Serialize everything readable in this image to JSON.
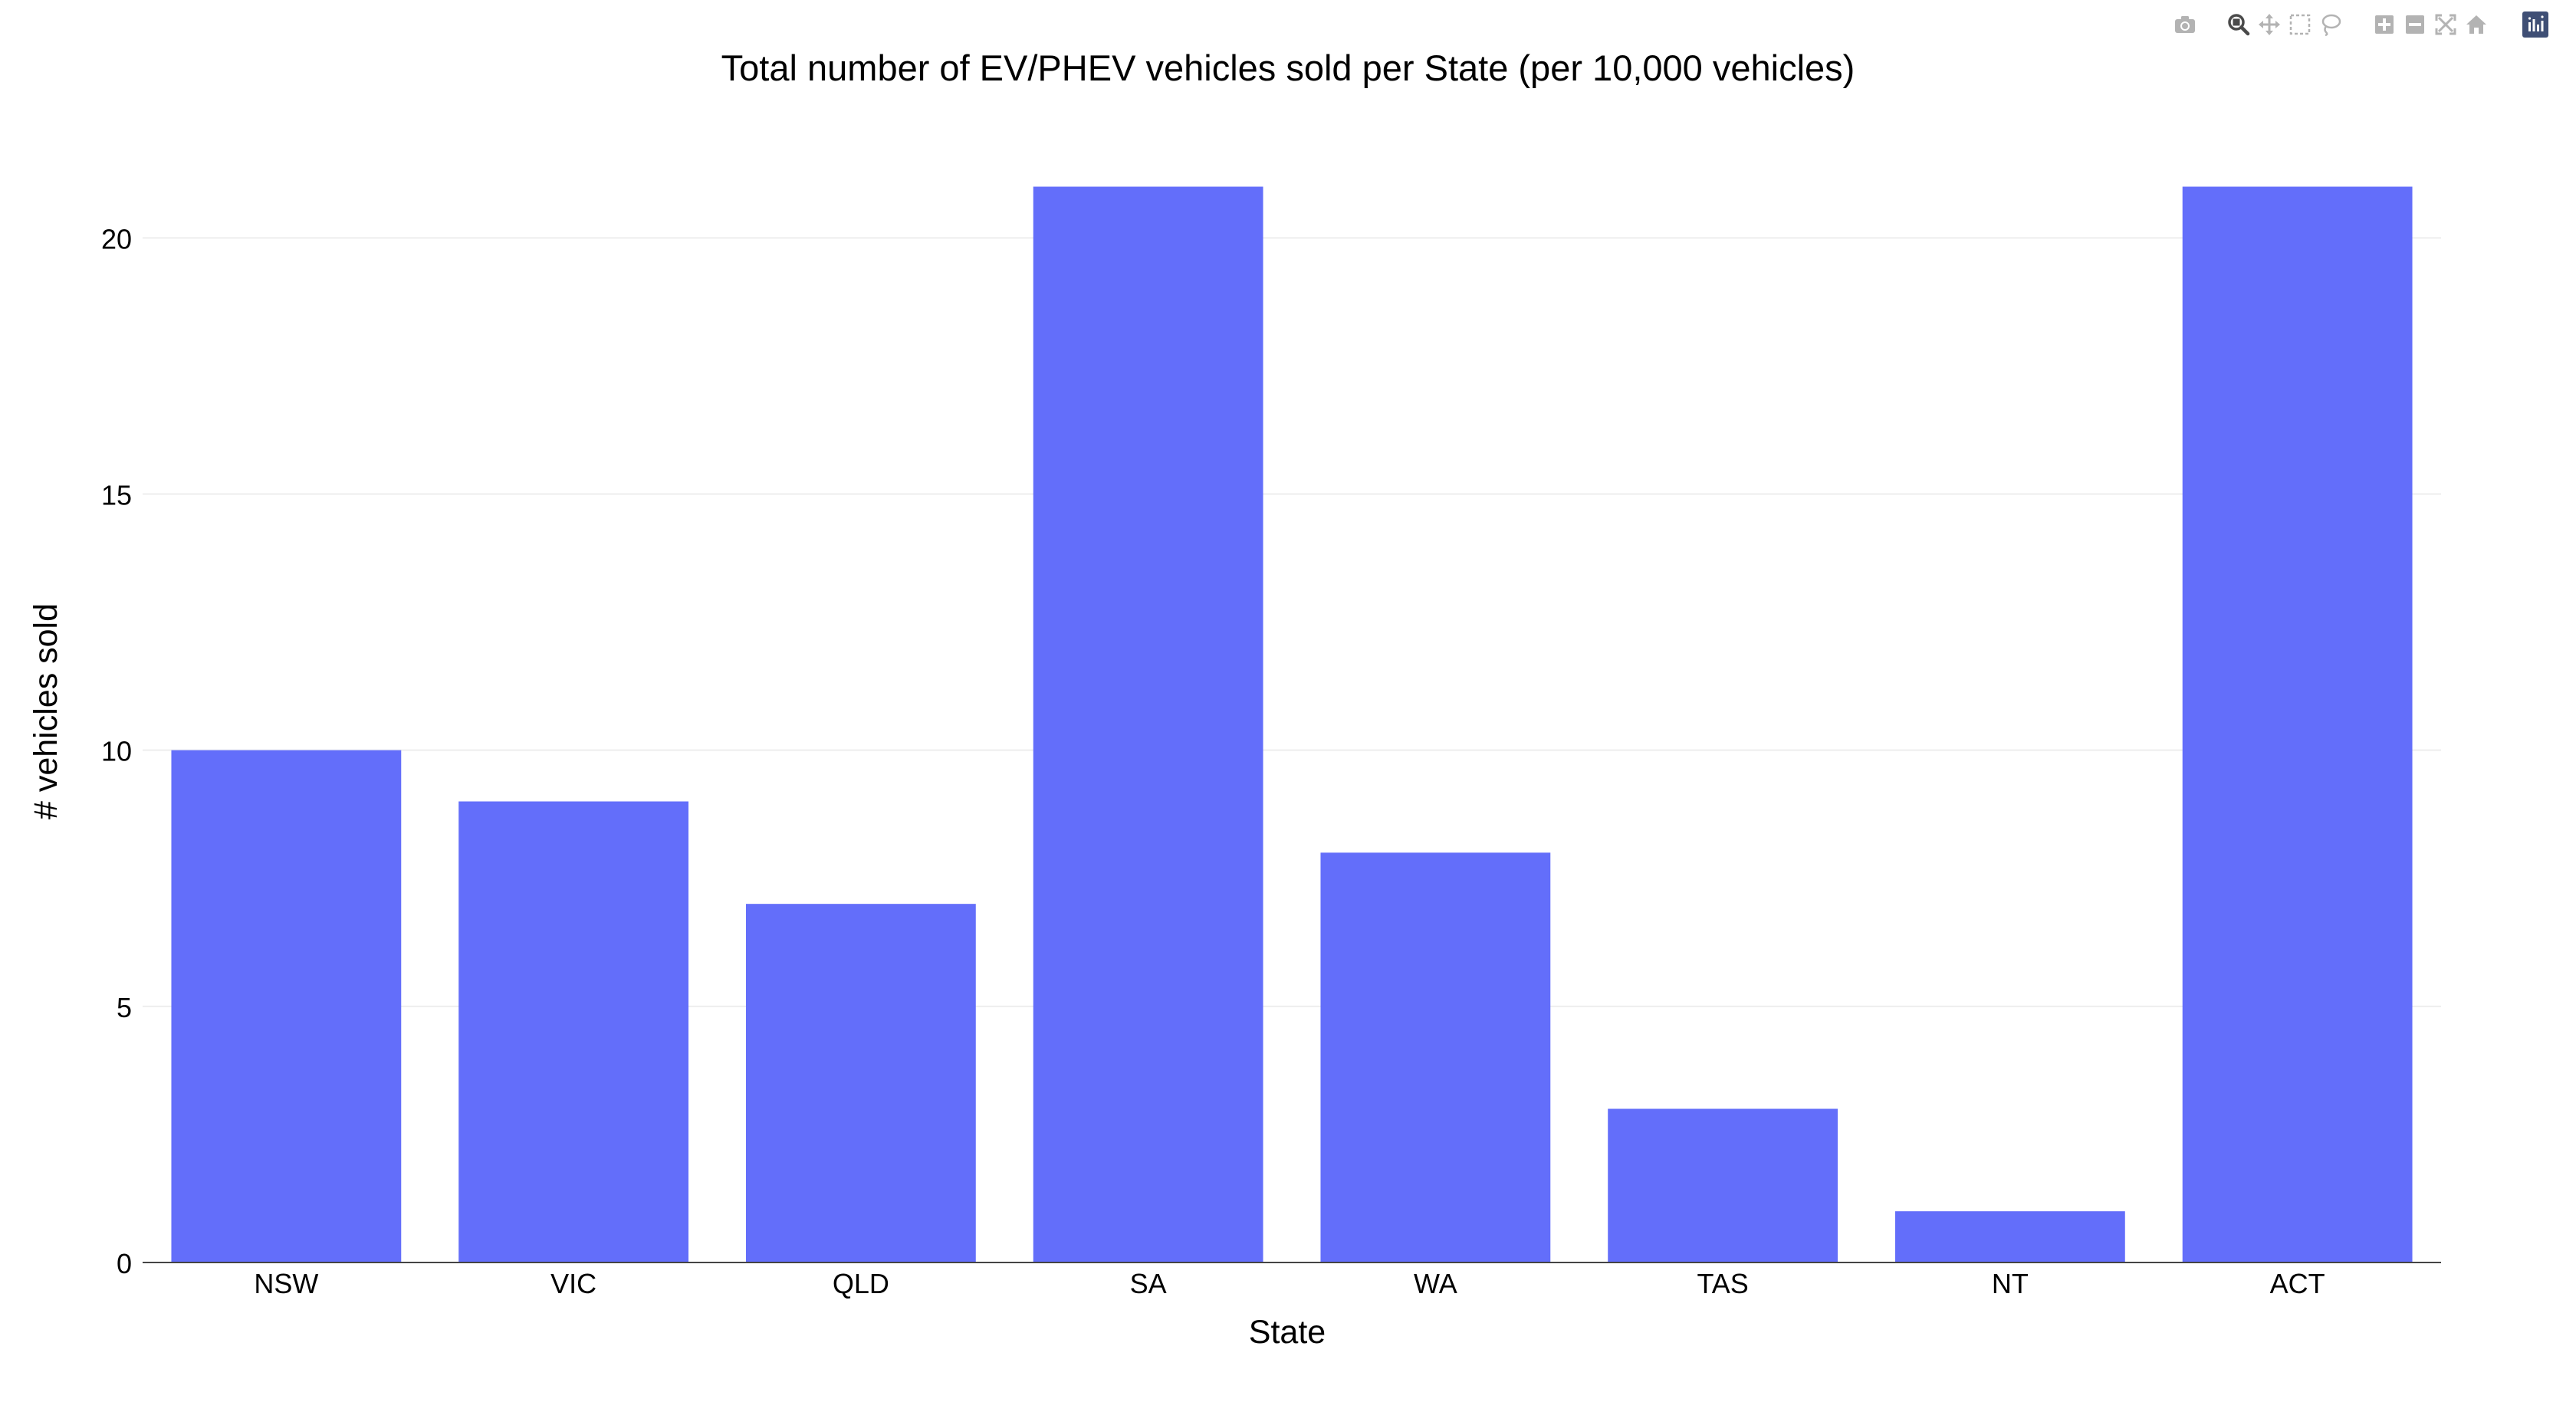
{
  "modebar": {
    "groups": [
      [
        "camera-icon"
      ],
      [
        "zoom-icon",
        "pan-icon",
        "box-select-icon",
        "lasso-select-icon"
      ],
      [
        "zoom-in-icon",
        "zoom-out-icon",
        "autoscale-icon",
        "reset-axes-icon"
      ],
      [
        "plotly-logo-icon"
      ]
    ],
    "icon_color": "#b3b3b3",
    "active_color": "#4a4a4a",
    "logo_color": "#3f4f75"
  },
  "chart_data": {
    "type": "bar",
    "title": "Total number of EV/PHEV vehicles sold per State (per 10,000 vehicles)",
    "xlabel": "State",
    "ylabel": "# vehicles sold",
    "categories": [
      "NSW",
      "VIC",
      "QLD",
      "SA",
      "WA",
      "TAS",
      "NT",
      "ACT"
    ],
    "values": [
      10,
      9,
      7,
      21,
      8,
      3,
      1,
      21
    ],
    "ylim": [
      0,
      22.1
    ],
    "yticks": [
      0,
      5,
      10,
      15,
      20
    ],
    "grid": true,
    "legend": "none",
    "bar_color": "#636efa",
    "grid_color": "#eeeeee",
    "axis_color": "#444444"
  }
}
